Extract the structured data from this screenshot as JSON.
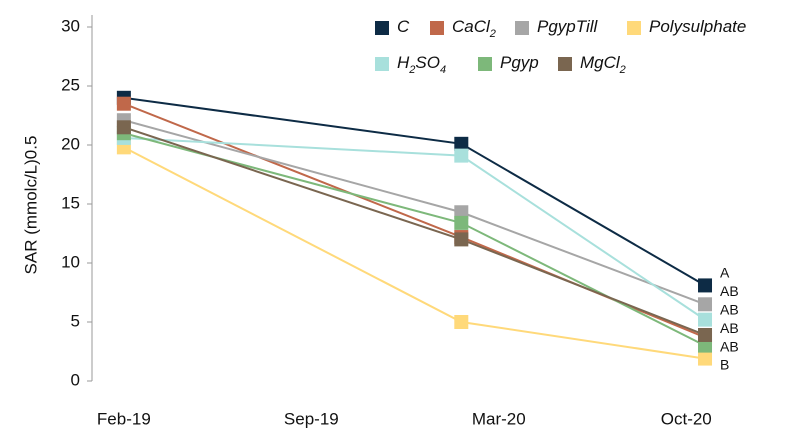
{
  "chart_data": {
    "type": "line",
    "ylabel": "SAR (mmolc/L)0.5",
    "x": [
      0,
      1.8,
      3.1
    ],
    "xlim": [
      -0.17,
      3.5
    ],
    "xticks": [
      {
        "value": 0,
        "label": "Feb-19"
      },
      {
        "value": 1,
        "label": "Sep-19"
      },
      {
        "value": 2,
        "label": "Mar-20"
      },
      {
        "value": 3,
        "label": "Oct-20"
      }
    ],
    "ylim": [
      0,
      30
    ],
    "yticks": [
      0,
      5,
      10,
      15,
      20,
      25,
      30
    ],
    "series": [
      {
        "name": "C",
        "color": "#0d2b45",
        "values": [
          24.0,
          20.1,
          8.1
        ]
      },
      {
        "name": "CaCl2",
        "color": "#c0684a",
        "values": [
          23.5,
          12.2,
          3.7
        ]
      },
      {
        "name": "PgypTill",
        "color": "#a6a6a6",
        "values": [
          22.1,
          14.3,
          6.5
        ]
      },
      {
        "name": "Polysulphate",
        "color": "#ffd97a",
        "values": [
          19.8,
          5.0,
          1.9
        ]
      },
      {
        "name": "H2SO4",
        "color": "#a8e0dc",
        "values": [
          20.6,
          19.1,
          5.2
        ]
      },
      {
        "name": "Pgyp",
        "color": "#7db87a",
        "values": [
          21.0,
          13.4,
          3.0
        ]
      },
      {
        "name": "MgCl2",
        "color": "#7a6650",
        "values": [
          21.5,
          12.0,
          3.9
        ]
      }
    ],
    "annotations": [
      "A",
      "AB",
      "AB",
      "AB",
      "AB",
      "B"
    ]
  }
}
